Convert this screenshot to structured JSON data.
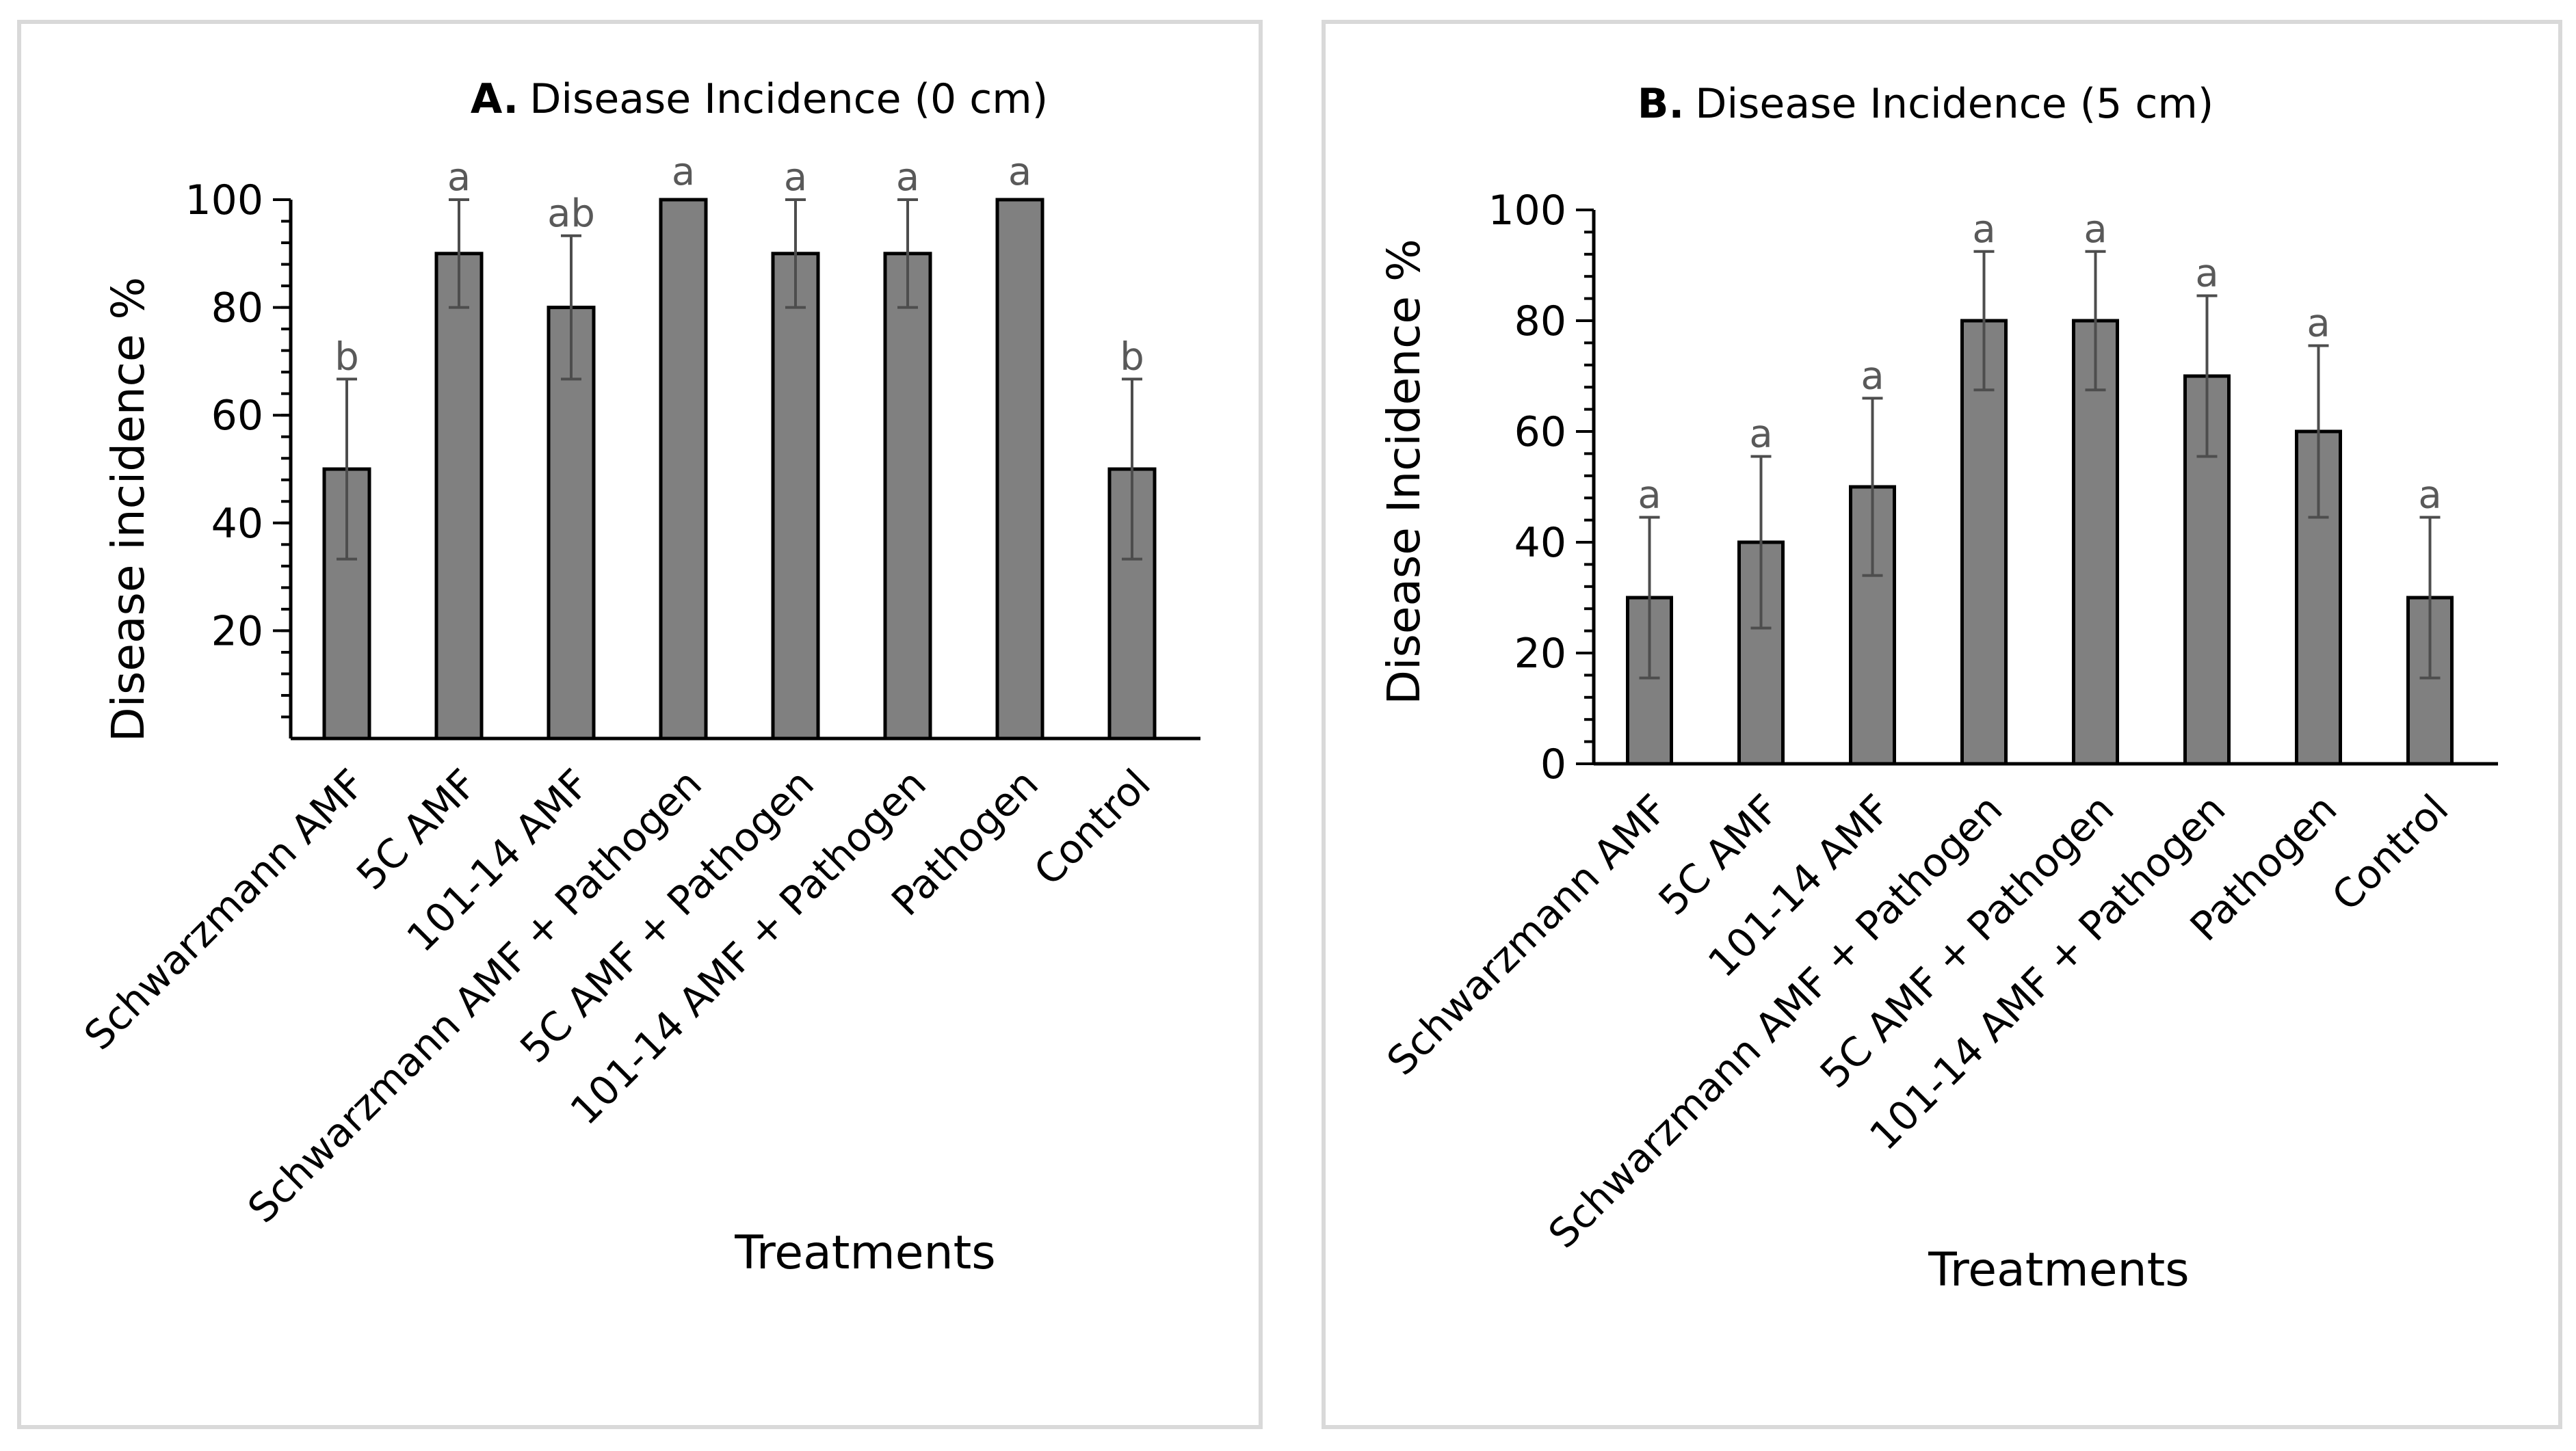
{
  "chart_data": [
    {
      "type": "bar",
      "title_prefix": "A.",
      "title_text": "Disease Incidence (0 cm)",
      "xlabel": "Treatments",
      "ylabel": "Disease incidence %",
      "ylim": [
        0,
        100
      ],
      "yticks": [
        "20",
        "40",
        "60",
        "80",
        "100"
      ],
      "ytick_values": [
        20,
        40,
        60,
        80,
        100
      ],
      "minor_tick_step": 4,
      "categories": [
        "Schwarzmann AMF",
        "5C AMF",
        "101-14 AMF",
        "Schwarzmann AMF + Pathogen",
        "5C AMF + Pathogen",
        "101-14 AMF + Pathogen",
        "Pathogen",
        "Control"
      ],
      "values": [
        50,
        90,
        80,
        100,
        90,
        90,
        100,
        50
      ],
      "errors": [
        16.7,
        10,
        13.3,
        0,
        10,
        10,
        0,
        16.7
      ],
      "letters": [
        "b",
        "a",
        "ab",
        "a",
        "a",
        "a",
        "a",
        "b"
      ],
      "bar_color": "#808080"
    },
    {
      "type": "bar",
      "title_prefix": "B.",
      "title_text": "Disease Incidence (5 cm)",
      "xlabel": "Treatments",
      "ylabel": "Disease Incidence %",
      "ylim": [
        0,
        100
      ],
      "yticks": [
        "0",
        "20",
        "40",
        "60",
        "80",
        "100"
      ],
      "ytick_values": [
        0,
        20,
        40,
        60,
        80,
        100
      ],
      "minor_tick_step": 4,
      "categories": [
        "Schwarzmann AMF",
        "5C AMF",
        "101-14 AMF",
        "Schwarzmann AMF + Pathogen",
        "5C AMF + Pathogen",
        "101-14 AMF + Pathogen",
        "Pathogen",
        "Control"
      ],
      "values": [
        30,
        40,
        50,
        80,
        80,
        70,
        60,
        30
      ],
      "errors": [
        14.5,
        15.5,
        16,
        12.5,
        12.5,
        14.5,
        15.5,
        14.5
      ],
      "letters": [
        "a",
        "a",
        "a",
        "a",
        "a",
        "a",
        "a",
        "a"
      ],
      "bar_color": "#808080"
    }
  ]
}
